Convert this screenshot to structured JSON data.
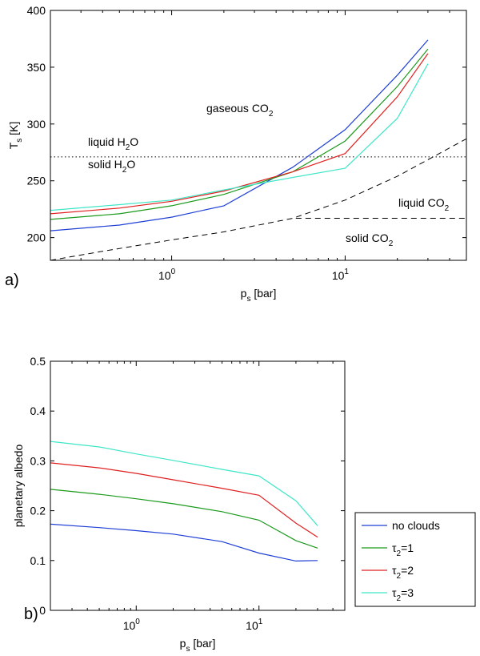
{
  "chart_data": [
    {
      "type": "line",
      "panel_label": "a)",
      "xscale": "log",
      "xlim": [
        0.2,
        50
      ],
      "ylim": [
        180,
        400
      ],
      "yticks": [
        200,
        250,
        300,
        350,
        400
      ],
      "ytick_labels": [
        "200",
        "250",
        "300",
        "350",
        "400"
      ],
      "xticks": [
        {
          "value": 1,
          "base": "10",
          "exp": "0"
        },
        {
          "value": 10,
          "base": "10",
          "exp": "1"
        }
      ],
      "xlabel": {
        "main": "p",
        "sub": "s",
        "rest": " [bar]"
      },
      "ylabel": {
        "main": "T",
        "sub": "s",
        "rest": " [K]"
      },
      "series": [
        {
          "name": "no clouds",
          "color": "#1f3fd6",
          "x": [
            0.2,
            0.5,
            1,
            2,
            5,
            10,
            20,
            30
          ],
          "y": [
            206,
            211,
            218,
            228,
            262,
            295,
            343,
            374
          ]
        },
        {
          "name": "τ2=1",
          "color": "#1b9a1b",
          "x": [
            0.2,
            0.5,
            1,
            2,
            5,
            10,
            20,
            30
          ],
          "y": [
            216,
            221,
            228,
            238,
            258,
            285,
            333,
            366
          ]
        },
        {
          "name": "τ2=2",
          "color": "#e02020",
          "x": [
            0.2,
            0.5,
            1,
            2,
            5,
            10,
            20,
            30
          ],
          "y": [
            221,
            226,
            232,
            241,
            258,
            274,
            324,
            362
          ]
        },
        {
          "name": "τ2=3",
          "color": "#3fe6c8",
          "x": [
            0.2,
            0.5,
            1,
            2,
            5,
            10,
            20,
            30
          ],
          "y": [
            224,
            229,
            233,
            242,
            253,
            261,
            305,
            353
          ]
        }
      ],
      "reference_lines": [
        {
          "name": "water freezing line",
          "style": "dotted",
          "x": [
            0.2,
            50
          ],
          "y": [
            271,
            271
          ]
        },
        {
          "name": "CO2 condensation curve",
          "style": "dashed",
          "x": [
            0.2,
            0.4,
            1,
            2,
            5,
            10,
            20,
            50
          ],
          "y": [
            180,
            188,
            198,
            205,
            217,
            233,
            254,
            287
          ]
        },
        {
          "name": "CO2 triple point line",
          "style": "dashed",
          "x": [
            5.2,
            50
          ],
          "y": [
            217,
            217
          ]
        }
      ],
      "annotations": [
        {
          "main": "gaseous CO",
          "sub": "2"
        },
        {
          "main": "liquid H",
          "sub": "2",
          "tail": "O"
        },
        {
          "main": "solid H",
          "sub": "2",
          "tail": "O"
        },
        {
          "main": "liquid CO",
          "sub": "2"
        },
        {
          "main": "solid CO",
          "sub": "2"
        }
      ]
    },
    {
      "type": "line",
      "panel_label": "b)",
      "xscale": "log",
      "xlim": [
        0.2,
        50
      ],
      "ylim": [
        0,
        0.5
      ],
      "yticks": [
        0,
        0.1,
        0.2,
        0.3,
        0.4,
        0.5
      ],
      "ytick_labels": [
        "0",
        "0.1",
        "0.2",
        "0.3",
        "0.4",
        "0.5"
      ],
      "xticks": [
        {
          "value": 1,
          "base": "10",
          "exp": "0"
        },
        {
          "value": 10,
          "base": "10",
          "exp": "1"
        }
      ],
      "xlabel": {
        "main": "p",
        "sub": "s",
        "rest": " [bar]"
      },
      "ylabel": "planetary albedo",
      "series": [
        {
          "name": "no clouds",
          "color": "#1f3fd6",
          "x": [
            0.2,
            0.5,
            1,
            2,
            5,
            10,
            20,
            30
          ],
          "y": [
            0.173,
            0.166,
            0.16,
            0.153,
            0.138,
            0.115,
            0.099,
            0.1
          ]
        },
        {
          "name": "τ2=1",
          "color": "#1b9a1b",
          "x": [
            0.2,
            0.5,
            1,
            2,
            5,
            10,
            20,
            30
          ],
          "y": [
            0.243,
            0.233,
            0.224,
            0.214,
            0.198,
            0.181,
            0.14,
            0.125
          ]
        },
        {
          "name": "τ2=2",
          "color": "#e02020",
          "x": [
            0.2,
            0.5,
            1,
            2,
            5,
            10,
            20,
            30
          ],
          "y": [
            0.296,
            0.286,
            0.275,
            0.262,
            0.245,
            0.231,
            0.175,
            0.147
          ]
        },
        {
          "name": "τ2=3",
          "color": "#3fe6c8",
          "x": [
            0.2,
            0.5,
            1,
            2,
            5,
            10,
            20,
            30
          ],
          "y": [
            0.339,
            0.328,
            0.314,
            0.301,
            0.283,
            0.27,
            0.22,
            0.17
          ]
        }
      ],
      "legend": {
        "placement": "right",
        "entries": [
          {
            "main": "no clouds",
            "color": "#1f3fd6"
          },
          {
            "main": "τ",
            "sub": "2",
            "tail": "=1",
            "color": "#1b9a1b"
          },
          {
            "main": "τ",
            "sub": "2",
            "tail": "=2",
            "color": "#e02020"
          },
          {
            "main": "τ",
            "sub": "2",
            "tail": "=3",
            "color": "#3fe6c8"
          }
        ]
      }
    }
  ]
}
